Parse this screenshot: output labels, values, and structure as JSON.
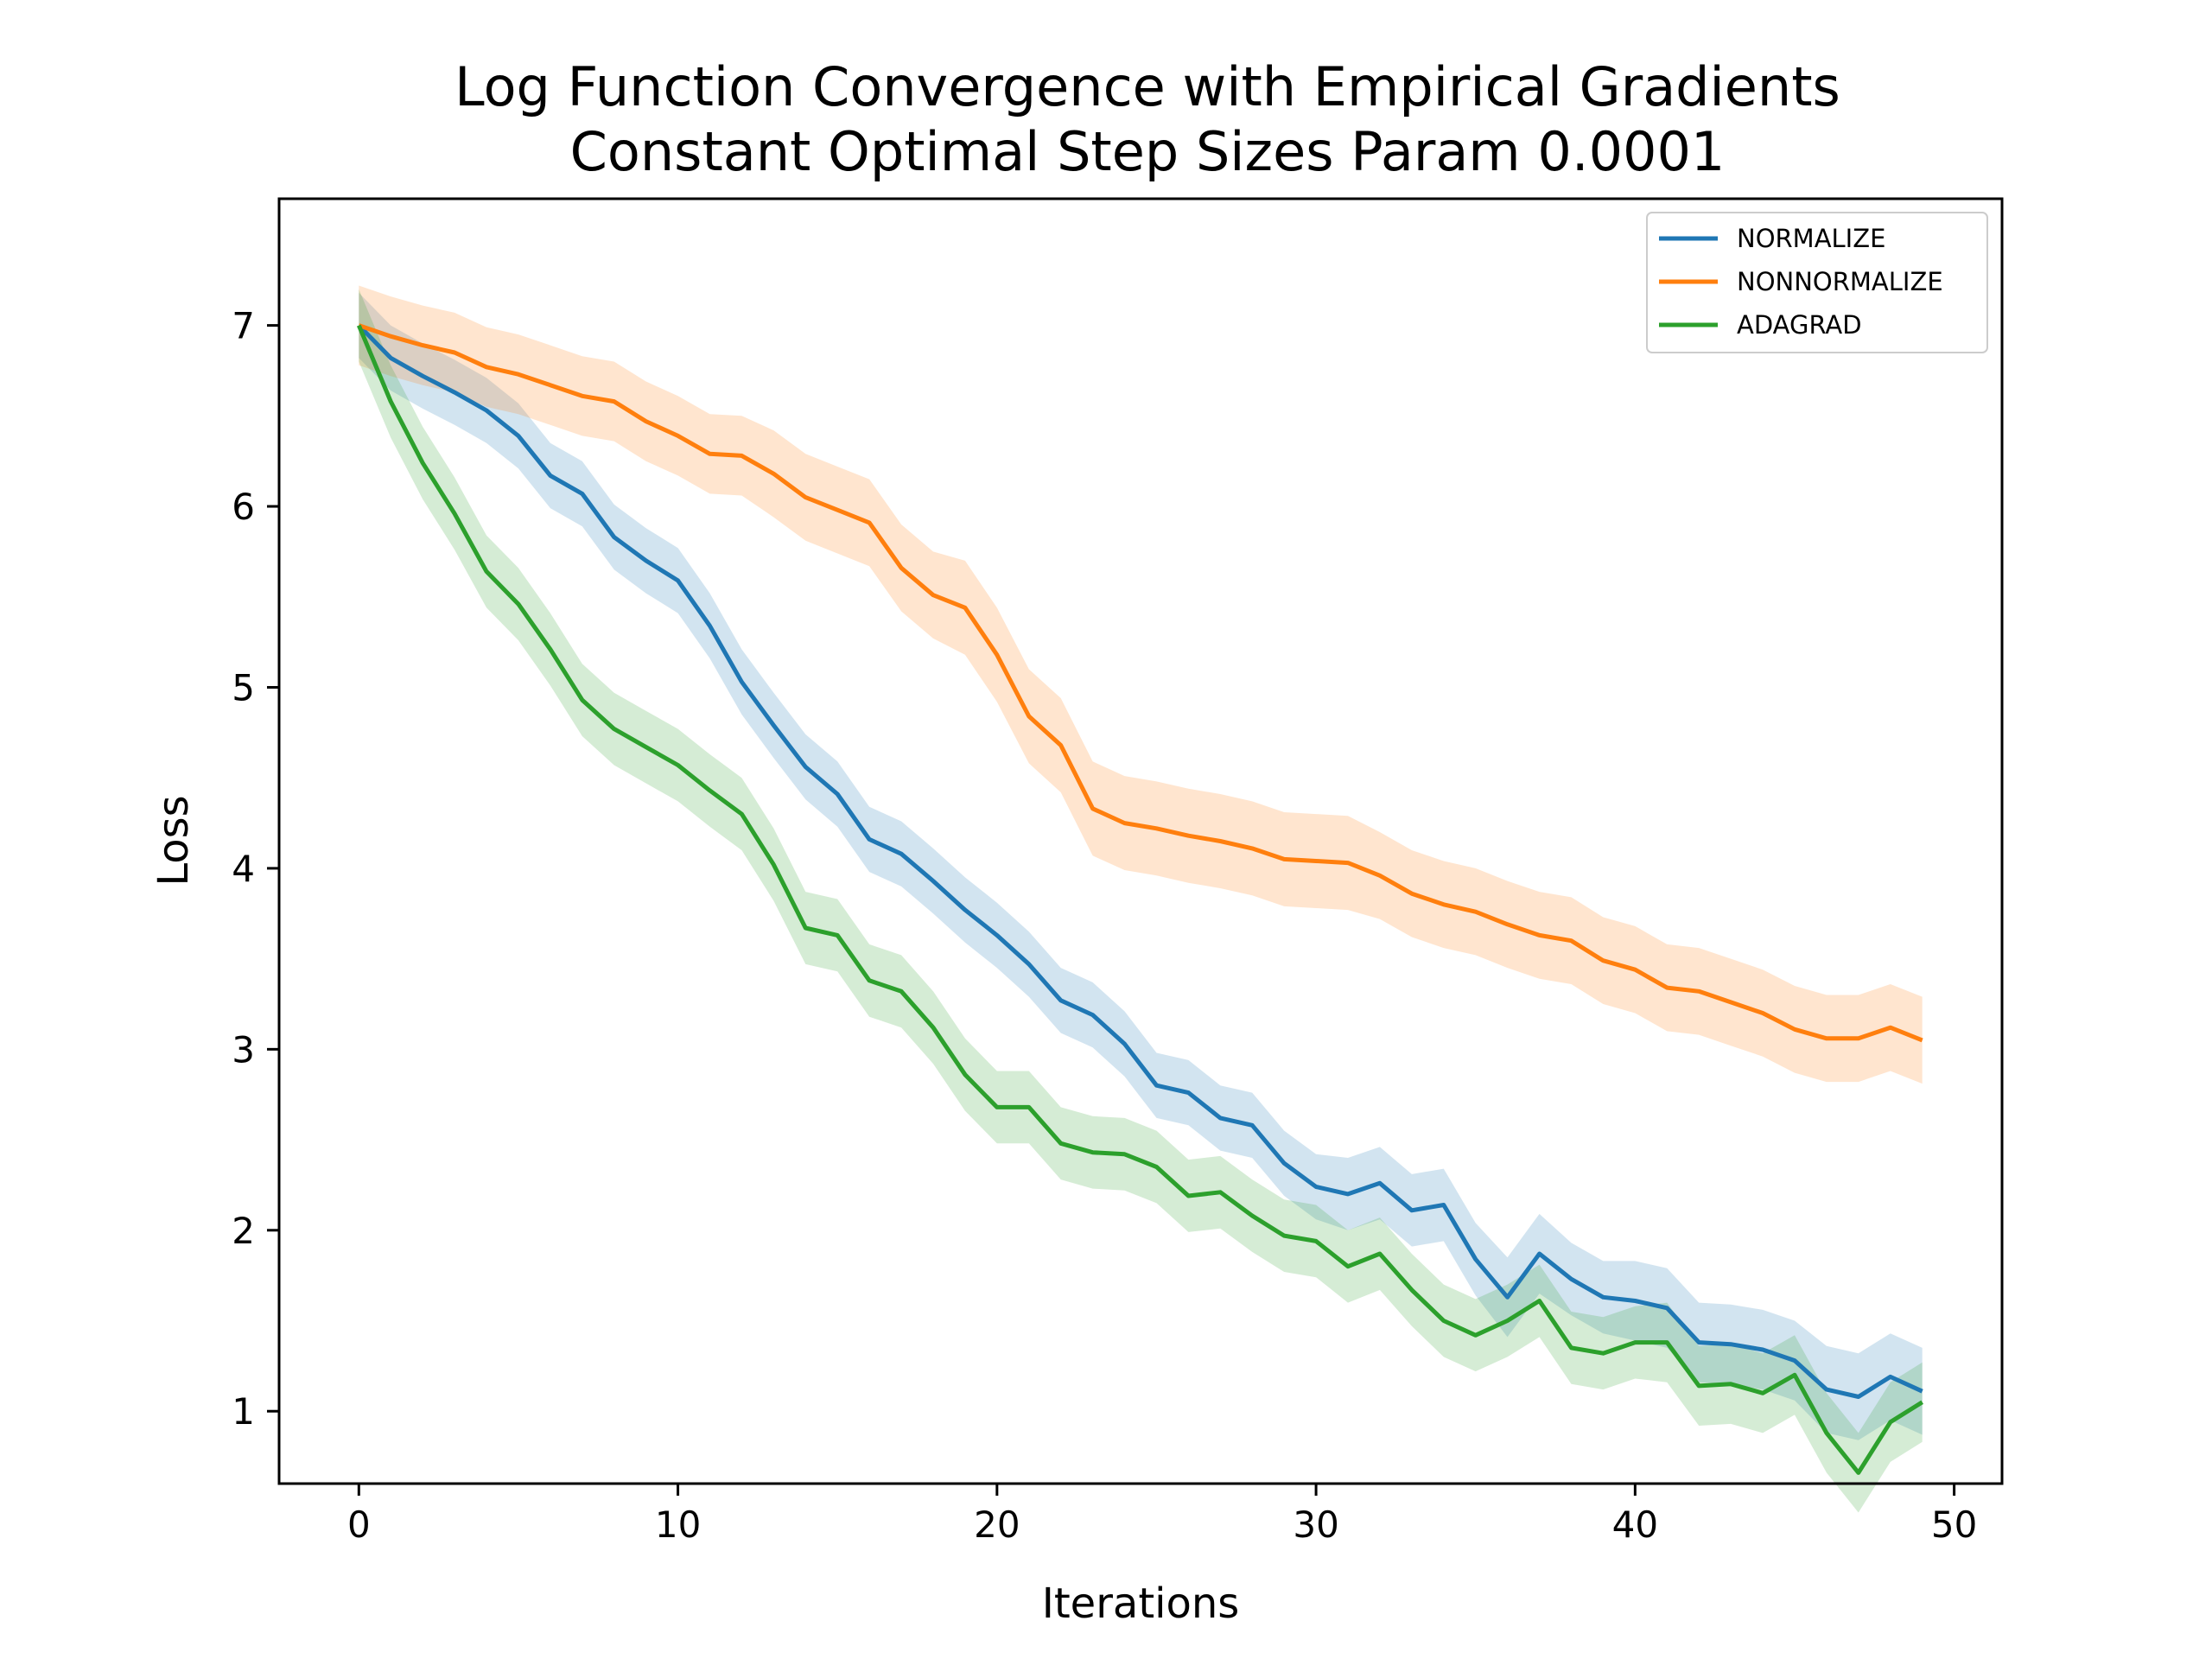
{
  "chart_data": {
    "type": "line",
    "title": "Log Function Convergence with Empirical Gradients",
    "subtitle": "Constant Optimal Step Sizes Param 0.0001",
    "xlabel": "Iterations",
    "ylabel": "Loss",
    "xlim": [
      -2.5,
      51.5
    ],
    "ylim": [
      0.6,
      7.7
    ],
    "xticks": [
      "0",
      "10",
      "20",
      "30",
      "40",
      "50"
    ],
    "yticks": [
      "1",
      "2",
      "3",
      "4",
      "5",
      "6",
      "7"
    ],
    "legend_position": "top-right",
    "x": [
      0,
      1,
      2,
      3,
      4,
      5,
      6,
      7,
      8,
      9,
      10,
      11,
      12,
      13,
      14,
      15,
      16,
      17,
      18,
      19,
      20,
      21,
      22,
      23,
      24,
      25,
      26,
      27,
      28,
      29,
      30,
      31,
      32,
      33,
      34,
      35,
      36,
      37,
      38,
      39,
      40,
      41,
      42,
      43,
      44,
      45,
      46,
      47,
      48,
      49
    ],
    "series": [
      {
        "name": "NORMALIZE",
        "color": "#1f77b4",
        "values": [
          7.0,
          6.82,
          6.72,
          6.63,
          6.53,
          6.39,
          6.17,
          6.07,
          5.83,
          5.7,
          5.59,
          5.34,
          5.03,
          4.79,
          4.56,
          4.41,
          4.16,
          4.08,
          3.93,
          3.77,
          3.63,
          3.47,
          3.27,
          3.19,
          3.03,
          2.8,
          2.76,
          2.62,
          2.58,
          2.37,
          2.24,
          2.2,
          2.26,
          2.11,
          2.14,
          1.84,
          1.63,
          1.87,
          1.73,
          1.63,
          1.61,
          1.57,
          1.38,
          1.37,
          1.34,
          1.28,
          1.12,
          1.08,
          1.19,
          1.11
        ],
        "band": [
          0.18,
          0.18,
          0.18,
          0.18,
          0.18,
          0.18,
          0.18,
          0.18,
          0.18,
          0.18,
          0.18,
          0.18,
          0.18,
          0.18,
          0.18,
          0.18,
          0.18,
          0.18,
          0.18,
          0.18,
          0.18,
          0.18,
          0.18,
          0.18,
          0.18,
          0.18,
          0.18,
          0.18,
          0.18,
          0.18,
          0.18,
          0.2,
          0.2,
          0.2,
          0.2,
          0.2,
          0.22,
          0.22,
          0.2,
          0.2,
          0.22,
          0.22,
          0.22,
          0.22,
          0.22,
          0.22,
          0.24,
          0.24,
          0.24,
          0.24
        ]
      },
      {
        "name": "NONNORMALIZE",
        "color": "#ff7f0e",
        "values": [
          7.0,
          6.94,
          6.89,
          6.85,
          6.77,
          6.73,
          6.67,
          6.61,
          6.58,
          6.47,
          6.39,
          6.29,
          6.28,
          6.18,
          6.05,
          5.98,
          5.91,
          5.66,
          5.51,
          5.44,
          5.18,
          4.84,
          4.68,
          4.33,
          4.25,
          4.22,
          4.18,
          4.15,
          4.11,
          4.05,
          4.04,
          4.03,
          3.96,
          3.86,
          3.8,
          3.76,
          3.69,
          3.63,
          3.6,
          3.49,
          3.44,
          3.34,
          3.32,
          3.26,
          3.2,
          3.11,
          3.06,
          3.06,
          3.12,
          3.05
        ],
        "band": [
          0.22,
          0.22,
          0.22,
          0.22,
          0.22,
          0.22,
          0.22,
          0.22,
          0.22,
          0.22,
          0.22,
          0.22,
          0.22,
          0.24,
          0.24,
          0.24,
          0.24,
          0.24,
          0.24,
          0.26,
          0.26,
          0.26,
          0.26,
          0.26,
          0.26,
          0.26,
          0.26,
          0.26,
          0.26,
          0.26,
          0.26,
          0.26,
          0.24,
          0.24,
          0.24,
          0.24,
          0.24,
          0.24,
          0.24,
          0.24,
          0.24,
          0.24,
          0.24,
          0.24,
          0.24,
          0.24,
          0.24,
          0.24,
          0.24,
          0.24
        ]
      },
      {
        "name": "ADAGRAD",
        "color": "#2ca02c",
        "values": [
          7.0,
          6.58,
          6.24,
          5.96,
          5.64,
          5.46,
          5.21,
          4.93,
          4.77,
          4.67,
          4.57,
          4.43,
          4.3,
          4.02,
          3.67,
          3.63,
          3.38,
          3.32,
          3.12,
          2.86,
          2.68,
          2.68,
          2.48,
          2.43,
          2.42,
          2.35,
          2.19,
          2.21,
          2.08,
          1.97,
          1.94,
          1.8,
          1.87,
          1.67,
          1.5,
          1.42,
          1.5,
          1.61,
          1.35,
          1.32,
          1.38,
          1.38,
          1.14,
          1.15,
          1.1,
          1.2,
          0.88,
          0.66,
          0.94,
          1.05
        ],
        "band": [
          0.2,
          0.2,
          0.2,
          0.2,
          0.2,
          0.2,
          0.2,
          0.2,
          0.2,
          0.2,
          0.2,
          0.2,
          0.2,
          0.2,
          0.2,
          0.2,
          0.2,
          0.2,
          0.2,
          0.2,
          0.2,
          0.2,
          0.2,
          0.2,
          0.2,
          0.2,
          0.2,
          0.2,
          0.2,
          0.2,
          0.2,
          0.2,
          0.2,
          0.2,
          0.2,
          0.2,
          0.2,
          0.2,
          0.2,
          0.2,
          0.2,
          0.22,
          0.22,
          0.22,
          0.22,
          0.22,
          0.22,
          0.22,
          0.22,
          0.22
        ]
      }
    ]
  }
}
